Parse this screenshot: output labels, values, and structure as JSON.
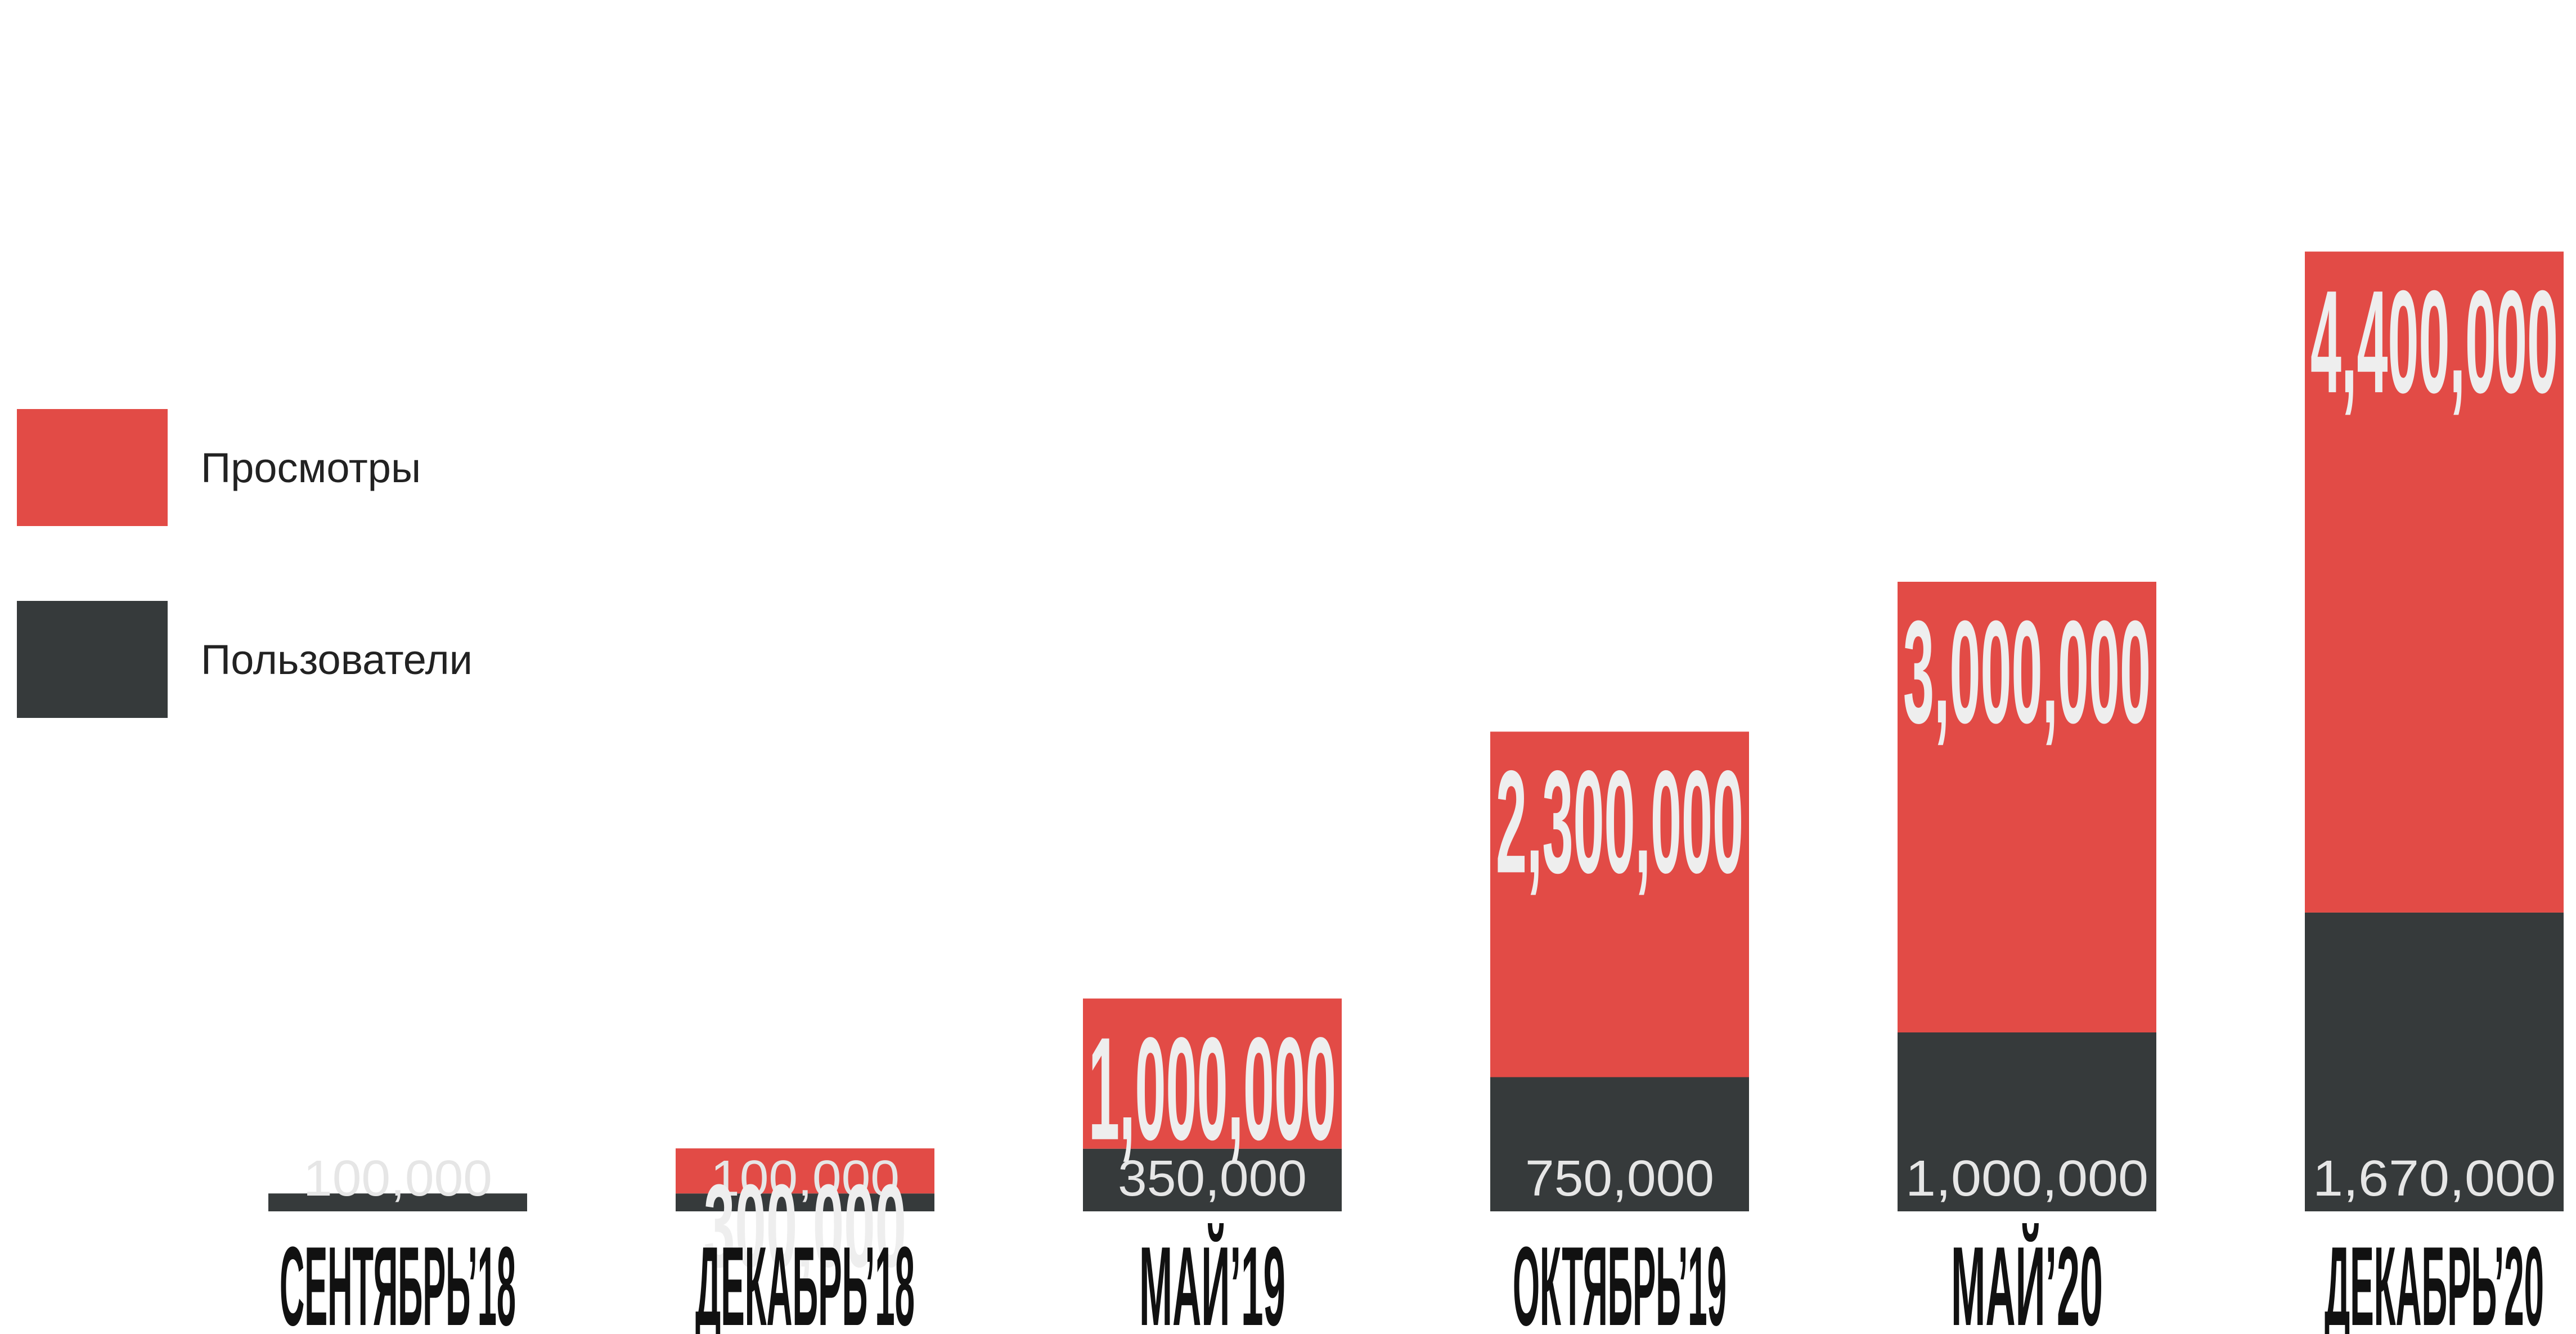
{
  "chart_data": {
    "type": "bar",
    "stacked": true,
    "categories": [
      "СЕНТЯБРЬ’18",
      "ДЕКАБРЬ’18",
      "МАЙ’19",
      "ОКТЯБРЬ’19",
      "МАЙ’20",
      "ДЕКАБРЬ’20"
    ],
    "series": [
      {
        "name": "Пользователи",
        "values": [
          100000,
          100000,
          350000,
          750000,
          1000000,
          1670000
        ],
        "labels": [
          "100,000",
          "100,000",
          "350,000",
          "750,000",
          "1,000,000",
          "1,670,000"
        ],
        "color": "#363a3b"
      },
      {
        "name": "Просмотры",
        "values": [
          0,
          300000,
          1000000,
          2300000,
          3000000,
          4400000
        ],
        "labels": [
          "",
          "300,000",
          "1,000,000",
          "2,300,000",
          "3,000,000",
          "4,400,000"
        ],
        "color": "#e24b46"
      }
    ],
    "legend": {
      "placement": "left",
      "items": [
        {
          "label": "Просмотры",
          "color": "#e24b46"
        },
        {
          "label": "Пользователи",
          "color": "#363a3b"
        }
      ]
    },
    "title": "",
    "xlabel": "",
    "ylabel": "",
    "grid": false
  }
}
